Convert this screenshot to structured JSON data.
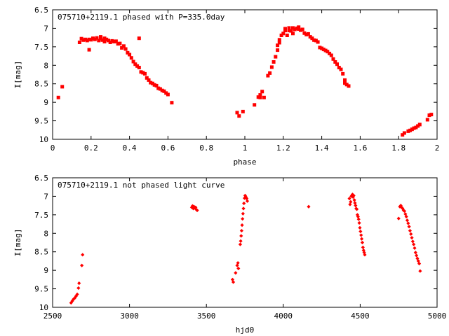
{
  "chart_data": [
    {
      "type": "scatter",
      "title": "075710+2119.1 phased with P=335.0day",
      "xlabel": "phase",
      "ylabel": "I[mag]",
      "xlim": [
        0,
        2
      ],
      "ylim": [
        6.5,
        10
      ],
      "y_inverted": true,
      "grid": false,
      "legend": "none",
      "marker_color": "#ff0000",
      "marker": "filled-square",
      "x_ticks": [
        "0",
        "0.2",
        "0.4",
        "0.6",
        "0.8",
        "1",
        "1.2",
        "1.4",
        "1.6",
        "1.8",
        "2"
      ],
      "y_ticks": [
        "6.5",
        "7",
        "7.5",
        "8",
        "8.5",
        "9",
        "9.5",
        "10"
      ],
      "series": [
        {
          "points": [
            [
              0.03,
              8.87
            ],
            [
              0.05,
              8.58
            ],
            [
              0.14,
              7.38
            ],
            [
              0.15,
              7.28
            ],
            [
              0.16,
              7.32
            ],
            [
              0.17,
              7.3
            ],
            [
              0.18,
              7.33
            ],
            [
              0.19,
              7.3
            ],
            [
              0.2,
              7.31
            ],
            [
              0.19,
              7.58
            ],
            [
              0.21,
              7.27
            ],
            [
              0.22,
              7.3
            ],
            [
              0.23,
              7.26
            ],
            [
              0.24,
              7.33
            ],
            [
              0.25,
              7.28
            ],
            [
              0.25,
              7.23
            ],
            [
              0.26,
              7.32
            ],
            [
              0.27,
              7.27
            ],
            [
              0.27,
              7.36
            ],
            [
              0.28,
              7.3
            ],
            [
              0.29,
              7.33
            ],
            [
              0.3,
              7.38
            ],
            [
              0.31,
              7.34
            ],
            [
              0.32,
              7.36
            ],
            [
              0.33,
              7.35
            ],
            [
              0.34,
              7.42
            ],
            [
              0.35,
              7.41
            ],
            [
              0.36,
              7.53
            ],
            [
              0.37,
              7.48
            ],
            [
              0.38,
              7.56
            ],
            [
              0.39,
              7.66
            ],
            [
              0.4,
              7.71
            ],
            [
              0.41,
              7.8
            ],
            [
              0.42,
              7.9
            ],
            [
              0.43,
              7.97
            ],
            [
              0.44,
              8.02
            ],
            [
              0.45,
              8.06
            ],
            [
              0.45,
              7.27
            ],
            [
              0.46,
              8.18
            ],
            [
              0.47,
              8.2
            ],
            [
              0.48,
              8.23
            ],
            [
              0.49,
              8.34
            ],
            [
              0.5,
              8.4
            ],
            [
              0.51,
              8.47
            ],
            [
              0.52,
              8.49
            ],
            [
              0.53,
              8.53
            ],
            [
              0.54,
              8.55
            ],
            [
              0.55,
              8.62
            ],
            [
              0.56,
              8.64
            ],
            [
              0.57,
              8.68
            ],
            [
              0.58,
              8.7
            ],
            [
              0.59,
              8.75
            ],
            [
              0.6,
              8.79
            ],
            [
              0.62,
              9.01
            ],
            [
              0.96,
              9.28
            ],
            [
              0.97,
              9.37
            ],
            [
              0.99,
              9.25
            ],
            [
              1.05,
              9.07
            ],
            [
              1.07,
              8.86
            ],
            [
              1.08,
              8.8
            ],
            [
              1.08,
              8.87
            ],
            [
              1.09,
              8.71
            ],
            [
              1.1,
              8.87
            ],
            [
              1.12,
              8.28
            ],
            [
              1.13,
              8.21
            ],
            [
              1.14,
              8.05
            ],
            [
              1.15,
              7.91
            ],
            [
              1.16,
              7.77
            ],
            [
              1.17,
              7.59
            ],
            [
              1.17,
              7.46
            ],
            [
              1.18,
              7.39
            ],
            [
              1.18,
              7.31
            ],
            [
              1.19,
              7.19
            ],
            [
              1.2,
              7.14
            ],
            [
              1.21,
              7.06
            ],
            [
              1.21,
              7.01
            ],
            [
              1.22,
              7.19
            ],
            [
              1.23,
              7.06
            ],
            [
              1.23,
              6.99
            ],
            [
              1.24,
              7.07
            ],
            [
              1.25,
              7.14
            ],
            [
              1.25,
              6.99
            ],
            [
              1.26,
              7.03
            ],
            [
              1.27,
              7.0
            ],
            [
              1.28,
              7.02
            ],
            [
              1.28,
              6.97
            ],
            [
              1.29,
              7.05
            ],
            [
              1.3,
              7.03
            ],
            [
              1.31,
              7.13
            ],
            [
              1.32,
              7.17
            ],
            [
              1.33,
              7.15
            ],
            [
              1.34,
              7.23
            ],
            [
              1.35,
              7.27
            ],
            [
              1.36,
              7.32
            ],
            [
              1.37,
              7.33
            ],
            [
              1.38,
              7.37
            ],
            [
              1.39,
              7.52
            ],
            [
              1.4,
              7.54
            ],
            [
              1.41,
              7.57
            ],
            [
              1.42,
              7.6
            ],
            [
              1.43,
              7.63
            ],
            [
              1.44,
              7.68
            ],
            [
              1.45,
              7.73
            ],
            [
              1.46,
              7.83
            ],
            [
              1.47,
              7.91
            ],
            [
              1.48,
              7.97
            ],
            [
              1.49,
              8.06
            ],
            [
              1.5,
              8.11
            ],
            [
              1.51,
              8.23
            ],
            [
              1.52,
              8.4
            ],
            [
              1.52,
              8.48
            ],
            [
              1.53,
              8.52
            ],
            [
              1.54,
              8.56
            ],
            [
              1.82,
              9.88
            ],
            [
              1.83,
              9.83
            ],
            [
              1.85,
              9.78
            ],
            [
              1.86,
              9.76
            ],
            [
              1.87,
              9.73
            ],
            [
              1.88,
              9.7
            ],
            [
              1.89,
              9.68
            ],
            [
              1.9,
              9.64
            ],
            [
              1.91,
              9.6
            ],
            [
              1.95,
              9.47
            ],
            [
              1.96,
              9.35
            ],
            [
              1.97,
              9.33
            ]
          ]
        }
      ]
    },
    {
      "type": "scatter",
      "title": "075710+2119.1 not phased light curve",
      "xlabel": "hjd0",
      "ylabel": "I[mag]",
      "xlim": [
        2500,
        5000
      ],
      "ylim": [
        6.5,
        10
      ],
      "y_inverted": true,
      "grid": false,
      "legend": "none",
      "marker_color": "#ff0000",
      "marker": "filled-diamond",
      "x_ticks": [
        "2500",
        "3000",
        "3500",
        "4000",
        "4500",
        "5000"
      ],
      "y_ticks": [
        "6.5",
        "7",
        "7.5",
        "8",
        "8.5",
        "9",
        "9.5",
        "10"
      ],
      "series": [
        {
          "points": [
            [
              2620,
              9.88
            ],
            [
              2628,
              9.83
            ],
            [
              2636,
              9.78
            ],
            [
              2644,
              9.75
            ],
            [
              2652,
              9.7
            ],
            [
              2660,
              9.65
            ],
            [
              2668,
              9.48
            ],
            [
              2672,
              9.35
            ],
            [
              2690,
              8.87
            ],
            [
              2695,
              8.58
            ],
            [
              3405,
              7.3
            ],
            [
              3410,
              7.26
            ],
            [
              3415,
              7.33
            ],
            [
              3420,
              7.28
            ],
            [
              3425,
              7.31
            ],
            [
              3430,
              7.3
            ],
            [
              3435,
              7.36
            ],
            [
              3440,
              7.38
            ],
            [
              3670,
              9.25
            ],
            [
              3675,
              9.32
            ],
            [
              3690,
              9.07
            ],
            [
              3700,
              8.87
            ],
            [
              3705,
              8.8
            ],
            [
              3708,
              8.95
            ],
            [
              3720,
              8.3
            ],
            [
              3723,
              8.21
            ],
            [
              3726,
              8.07
            ],
            [
              3729,
              7.93
            ],
            [
              3732,
              7.78
            ],
            [
              3735,
              7.61
            ],
            [
              3738,
              7.47
            ],
            [
              3741,
              7.33
            ],
            [
              3744,
              7.19
            ],
            [
              3748,
              7.05
            ],
            [
              3752,
              6.98
            ],
            [
              3757,
              7.02
            ],
            [
              3762,
              7.06
            ],
            [
              3766,
              7.13
            ],
            [
              4165,
              7.28
            ],
            [
              4430,
              7.06
            ],
            [
              4434,
              7.22
            ],
            [
              4438,
              7.15
            ],
            [
              4442,
              7.0
            ],
            [
              4446,
              6.98
            ],
            [
              4450,
              6.95
            ],
            [
              4454,
              7.02
            ],
            [
              4458,
              6.98
            ],
            [
              4462,
              7.1
            ],
            [
              4466,
              7.18
            ],
            [
              4470,
              7.25
            ],
            [
              4474,
              7.33
            ],
            [
              4478,
              7.35
            ],
            [
              4482,
              7.5
            ],
            [
              4486,
              7.55
            ],
            [
              4490,
              7.62
            ],
            [
              4494,
              7.72
            ],
            [
              4498,
              7.85
            ],
            [
              4502,
              7.95
            ],
            [
              4506,
              8.05
            ],
            [
              4510,
              8.15
            ],
            [
              4514,
              8.25
            ],
            [
              4518,
              8.38
            ],
            [
              4522,
              8.46
            ],
            [
              4526,
              8.52
            ],
            [
              4530,
              8.58
            ],
            [
              4750,
              7.6
            ],
            [
              4758,
              7.28
            ],
            [
              4764,
              7.25
            ],
            [
              4770,
              7.3
            ],
            [
              4776,
              7.33
            ],
            [
              4782,
              7.38
            ],
            [
              4788,
              7.4
            ],
            [
              4794,
              7.48
            ],
            [
              4800,
              7.55
            ],
            [
              4806,
              7.65
            ],
            [
              4812,
              7.73
            ],
            [
              4818,
              7.82
            ],
            [
              4824,
              7.93
            ],
            [
              4830,
              8.02
            ],
            [
              4836,
              8.12
            ],
            [
              4842,
              8.22
            ],
            [
              4848,
              8.3
            ],
            [
              4854,
              8.4
            ],
            [
              4860,
              8.52
            ],
            [
              4866,
              8.6
            ],
            [
              4872,
              8.68
            ],
            [
              4878,
              8.75
            ],
            [
              4884,
              8.82
            ],
            [
              4890,
              9.02
            ]
          ]
        }
      ]
    }
  ]
}
